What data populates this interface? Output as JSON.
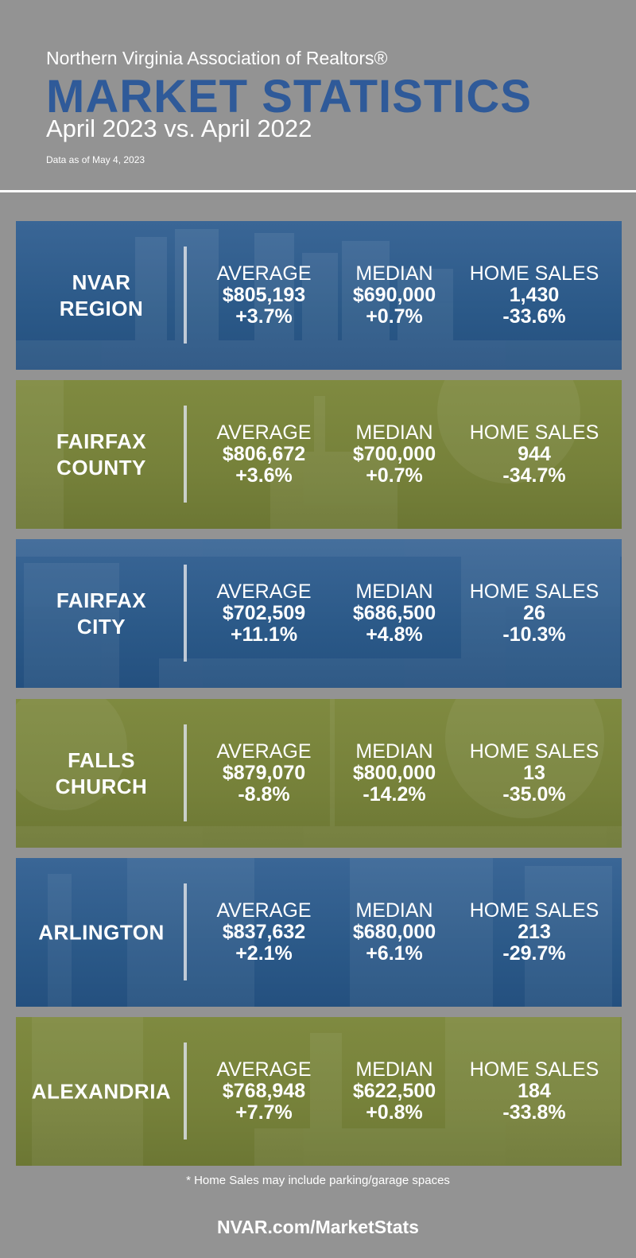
{
  "header": {
    "org": "Northern Virginia Association of Realtors®",
    "title": "MARKET STATISTICS",
    "subtitle": "April 2023 vs. April 2022",
    "as_of": "Data as of May 4, 2023"
  },
  "labels": {
    "average": "AVERAGE",
    "median": "MEDIAN",
    "home_sales": "HOME SALES"
  },
  "regions": [
    {
      "name1": "NVAR",
      "name2": "REGION",
      "avg": "$805,193",
      "avg_chg": "+3.7%",
      "med": "$690,000",
      "med_chg": "+0.7%",
      "sales": "1,430",
      "sales_chg": "-33.6%",
      "color": "#2b5988"
    },
    {
      "name1": "FAIRFAX",
      "name2": "COUNTY",
      "avg": "$806,672",
      "avg_chg": "+3.6%",
      "med": "$700,000",
      "med_chg": "+0.7%",
      "sales": "944",
      "sales_chg": "-34.7%",
      "color": "#76813a"
    },
    {
      "name1": "FAIRFAX",
      "name2": "CITY",
      "avg": "$702,509",
      "avg_chg": "+11.1%",
      "med": "$686,500",
      "med_chg": "+4.8%",
      "sales": "26",
      "sales_chg": "-10.3%",
      "color": "#2b5988"
    },
    {
      "name1": "FALLS",
      "name2": "CHURCH",
      "avg": "$879,070",
      "avg_chg": "-8.8%",
      "med": "$800,000",
      "med_chg": "-14.2%",
      "sales": "13",
      "sales_chg": "-35.0%",
      "color": "#76813a"
    },
    {
      "name1": "ARLINGTON",
      "name2": "",
      "avg": "$837,632",
      "avg_chg": "+2.1%",
      "med": "$680,000",
      "med_chg": "+6.1%",
      "sales": "213",
      "sales_chg": "-29.7%",
      "color": "#2b5988"
    },
    {
      "name1": "ALEXANDRIA",
      "name2": "",
      "avg": "$768,948",
      "avg_chg": "+7.7%",
      "med": "$622,500",
      "med_chg": "+0.8%",
      "sales": "184",
      "sales_chg": "-33.8%",
      "color": "#76813a"
    }
  ],
  "footer": {
    "note": "* Home Sales may include parking/garage spaces",
    "url": "NVAR.com/MarketStats"
  }
}
